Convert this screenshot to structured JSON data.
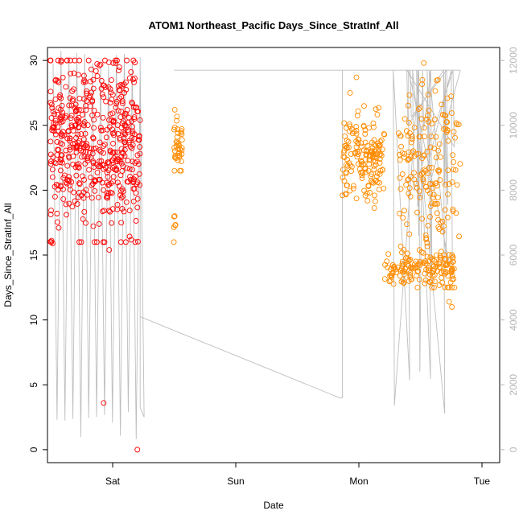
{
  "chart_data": {
    "type": "scatter",
    "title": "ATOM1 Northeast_Pacific Days_Since_StratInf_All",
    "xlabel": "Date",
    "ylabel": "Days_Since_StratInf_All",
    "x_ticks": [
      "Sat",
      "Sun",
      "Mon",
      "Tue"
    ],
    "xlim": [
      -0.45,
      1.16
    ],
    "ylim": [
      -1.0,
      31.0
    ],
    "y_ticks": [
      0,
      5,
      10,
      15,
      20,
      25,
      30
    ],
    "y2lim": [
      -400,
      12400
    ],
    "y2_ticks": [
      0,
      2000,
      4000,
      6000,
      8000,
      10000,
      12000
    ],
    "grid": false,
    "colors": {
      "series_1": "#ff0000",
      "series_2": "#ff8c00",
      "line": "#bebebe",
      "right_axis": "#b5b5b5"
    },
    "series": [
      {
        "color": "#ff0000",
        "clusters": [
          {
            "x": [
              -0.44,
              -0.12
            ],
            "y_range": [
              16,
              30
            ],
            "y_mean": 23.5,
            "y_sd": 3.3,
            "count": 520
          },
          {
            "x": [
              -0.44,
              -0.43
            ],
            "y_range": [
              15.9,
              16.4
            ],
            "y_mean": 16.1,
            "y_sd": 0.2,
            "count": 3
          }
        ],
        "outliers": [
          [
            -0.25,
            3.6
          ],
          [
            -0.13,
            0.0
          ],
          [
            -0.23,
            15.4
          ],
          [
            -0.41,
            17.1
          ]
        ]
      },
      {
        "color": "#ff8c00",
        "clusters": [
          {
            "x": [
              0.0,
              0.03
            ],
            "y_range": [
              21.5,
              26.2
            ],
            "y_mean": 23.3,
            "y_sd": 1.0,
            "count": 40
          },
          {
            "x": [
              0.0,
              0.01
            ],
            "y_range": [
              16.9,
              18.0
            ],
            "y_mean": 17.6,
            "y_sd": 0.3,
            "count": 6
          },
          {
            "x": [
              0.6,
              0.75
            ],
            "y_range": [
              18.5,
              27.5
            ],
            "y_mean": 22.5,
            "y_sd": 1.6,
            "count": 170
          },
          {
            "x": [
              0.75,
              1.0
            ],
            "y_range": [
              12.5,
              16.5
            ],
            "y_mean": 13.9,
            "y_sd": 0.8,
            "count": 160
          },
          {
            "x": [
              0.8,
              1.02
            ],
            "y_range": [
              15,
              28.5
            ],
            "y_mean": 21.5,
            "y_sd": 3.2,
            "count": 170
          }
        ],
        "outliers": [
          [
            0.0,
            16.0
          ],
          [
            0.99,
            11.0
          ],
          [
            0.98,
            11.4
          ],
          [
            0.89,
            29.8
          ],
          [
            0.65,
            28.7
          ]
        ]
      },
      {
        "type": "line",
        "axis": "right",
        "color": "#bebebe",
        "segments": [
          {
            "x": [
              -0.43,
              -0.12
            ],
            "y_low": [
              200,
              1300
            ],
            "y_high": [
              11700,
              12300
            ],
            "oscillations": 11
          },
          {
            "x": [
              -0.12,
              -0.12
            ],
            "y": [
              1300,
              12100
            ]
          }
        ],
        "x": [
          -0.12,
          0.59,
          0.6,
          0.6,
          0.001,
          0.02,
          0.02,
          1.02
        ],
        "y": [
          4100,
          1600,
          1600,
          11700,
          11700,
          11700,
          11700,
          11700
        ]
      }
    ]
  }
}
